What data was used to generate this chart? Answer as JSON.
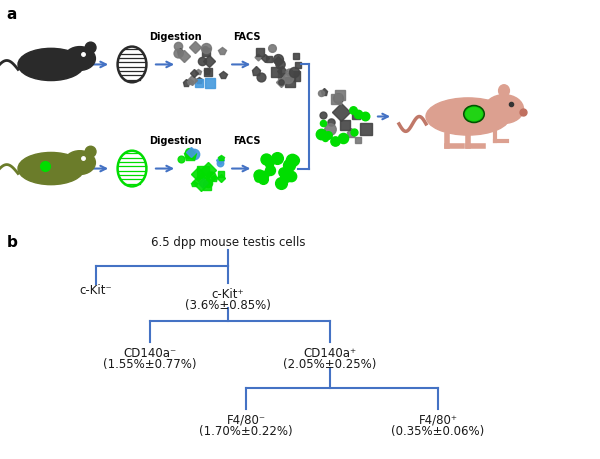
{
  "panel_a_label": "a",
  "panel_b_label": "b",
  "node_root": "6.5 dpp mouse testis cells",
  "node_left": "c-Kit⁻",
  "node_right_line1": "c-Kit⁺",
  "node_right_line2": "(3.6%±0.85%)",
  "node_rl_line1": "CD140a⁻",
  "node_rl_line2": "(1.55%±0.77%)",
  "node_rr_line1": "CD140a⁺",
  "node_rr_line2": "(2.05%±0.25%)",
  "node_rrl_line1": "F4/80⁻",
  "node_rrl_line2": "(1.70%±0.22%)",
  "node_rrr_line1": "F4/80⁺",
  "node_rrr_line2": "(0.35%±0.06%)",
  "line_color": "#4472C4",
  "text_color": "#1a1a1a",
  "bg_color": "#ffffff",
  "digestion_label": "Digestion",
  "facs_label": "FACS",
  "mouse1_body_color": "#2a2a2a",
  "mouse2_body_color": "#6b7c2a",
  "mouse3_body_color": "#dca090",
  "green_dot_color": "#00dd00",
  "blue_dot_color": "#4499dd",
  "dark_dot_color": "#444444",
  "mid_dot_color": "#777777"
}
